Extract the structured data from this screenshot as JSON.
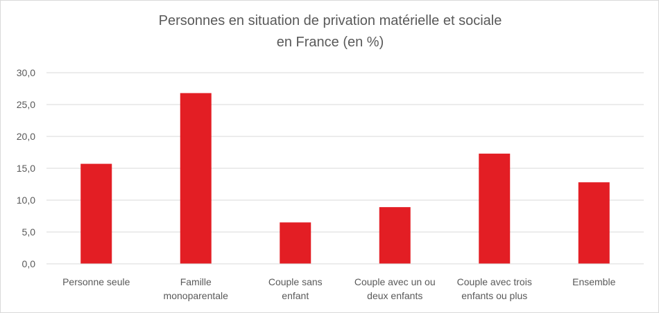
{
  "chart_data": {
    "type": "bar",
    "title_lines": [
      "Personnes en situation de privation matérielle et sociale",
      "en France  (en %)"
    ],
    "categories": [
      [
        "Personne seule"
      ],
      [
        "Famille",
        "monoparentale"
      ],
      [
        "Couple sans",
        "enfant"
      ],
      [
        "Couple avec un ou",
        "deux enfants"
      ],
      [
        "Couple avec trois",
        "enfants ou plus"
      ],
      [
        "Ensemble"
      ]
    ],
    "values": [
      15.7,
      26.8,
      6.5,
      8.9,
      17.3,
      12.8
    ],
    "ylim": [
      0,
      30
    ],
    "yticks": [
      "0,0",
      "5,0",
      "10,0",
      "15,0",
      "20,0",
      "25,0",
      "30,0"
    ],
    "bar_color": "#e31e24",
    "grid": true,
    "legend": "none"
  }
}
